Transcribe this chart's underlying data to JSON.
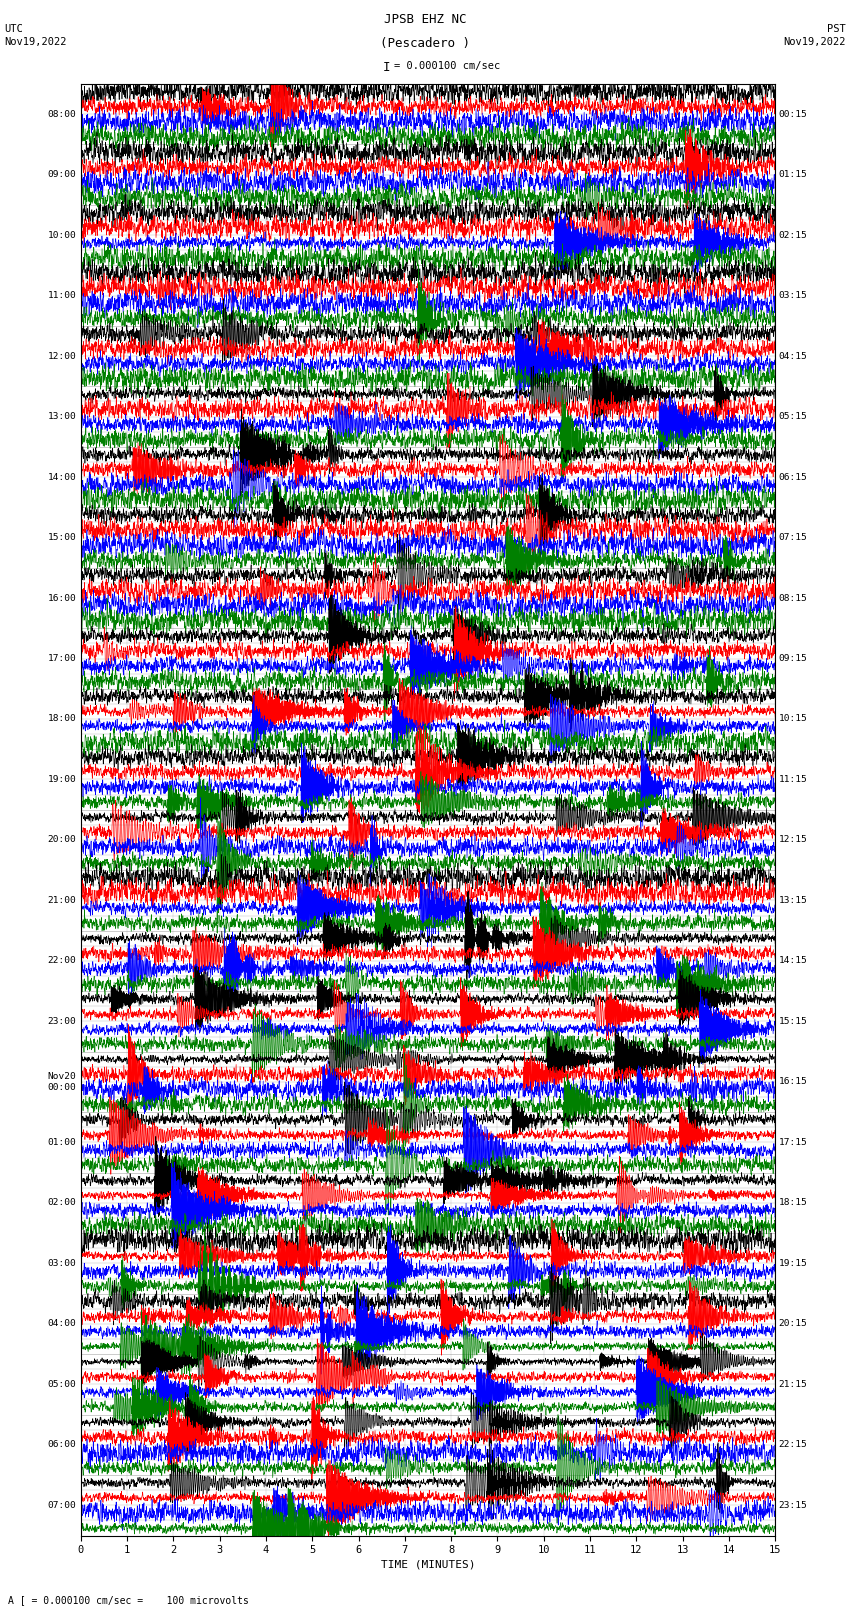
{
  "title_line1": "JPSB EHZ NC",
  "title_line2": "(Pescadero )",
  "scale_bar_text": "I = 0.000100 cm/sec",
  "left_header": "UTC\nNov19,2022",
  "right_header": "PST\nNov19,2022",
  "bottom_label": "TIME (MINUTES)",
  "bottom_note": "A [ = 0.000100 cm/sec =    100 microvolts",
  "xlabel_ticks": [
    0,
    1,
    2,
    3,
    4,
    5,
    6,
    7,
    8,
    9,
    10,
    11,
    12,
    13,
    14,
    15
  ],
  "trace_colors": [
    "black",
    "red",
    "blue",
    "green"
  ],
  "background_color": "white",
  "fig_width": 8.5,
  "fig_height": 16.13,
  "minutes_per_row": 15,
  "hour_labels_utc": [
    "08:00",
    "09:00",
    "10:00",
    "11:00",
    "12:00",
    "13:00",
    "14:00",
    "15:00",
    "16:00",
    "17:00",
    "18:00",
    "19:00",
    "20:00",
    "21:00",
    "22:00",
    "23:00",
    "Nov20\n00:00",
    "01:00",
    "02:00",
    "03:00",
    "04:00",
    "05:00",
    "06:00",
    "07:00"
  ],
  "hour_labels_pst": [
    "00:15",
    "01:15",
    "02:15",
    "03:15",
    "04:15",
    "05:15",
    "06:15",
    "07:15",
    "08:15",
    "09:15",
    "10:15",
    "11:15",
    "12:15",
    "13:15",
    "14:15",
    "15:15",
    "16:15",
    "17:15",
    "18:15",
    "19:15",
    "20:15",
    "21:15",
    "22:15",
    "23:15"
  ],
  "n_hours": 24,
  "n_colors": 4,
  "grid_color": "#888888"
}
